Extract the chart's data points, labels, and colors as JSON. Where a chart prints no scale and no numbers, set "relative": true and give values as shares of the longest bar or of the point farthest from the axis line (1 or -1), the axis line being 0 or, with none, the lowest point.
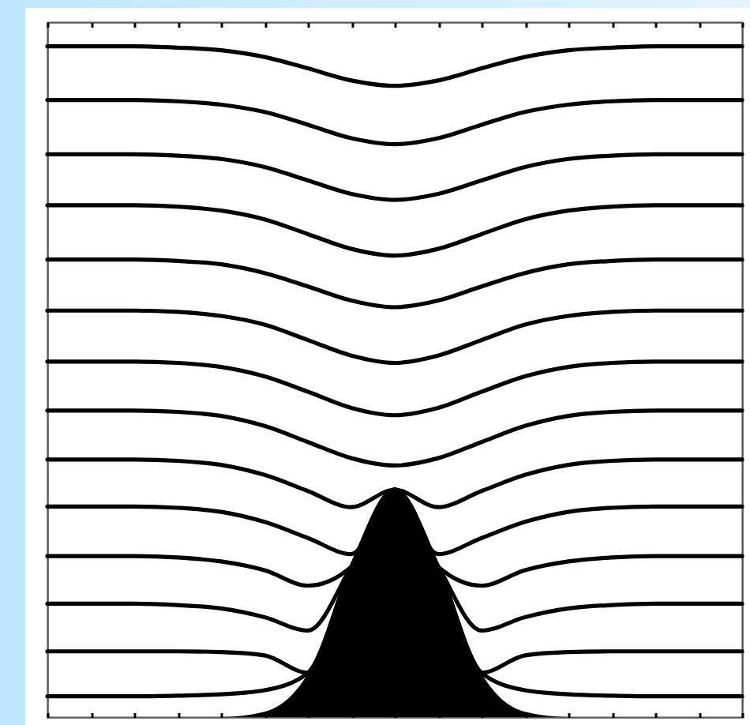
{
  "chart_data": {
    "type": "line",
    "relative": true,
    "categories": [
      null,
      null,
      null,
      null,
      null,
      null,
      null,
      null,
      null,
      null,
      null,
      null,
      null,
      null,
      null,
      null,
      null
    ],
    "series": [
      {
        "type": "area",
        "color": "#000000",
        "values": [
          0,
          0,
          0,
          0,
          0,
          0.008,
          0.065,
          0.224,
          0.339,
          0.224,
          0.065,
          0.008,
          0,
          0,
          0,
          0,
          0
        ]
      },
      {
        "color": "#000000",
        "values": [
          1,
          1,
          1,
          0.998,
          0.994,
          0.984,
          0.967,
          0.949,
          0.941,
          0.949,
          0.967,
          0.984,
          0.994,
          0.998,
          1,
          1,
          1
        ]
      },
      {
        "color": "#000000",
        "values": [
          0.92,
          0.92,
          0.92,
          0.918,
          0.913,
          0.902,
          0.883,
          0.863,
          0.854,
          0.863,
          0.883,
          0.902,
          0.913,
          0.918,
          0.92,
          0.92,
          0.92
        ]
      },
      {
        "color": "#000000",
        "values": [
          0.839,
          0.839,
          0.839,
          0.837,
          0.832,
          0.82,
          0.8,
          0.78,
          0.771,
          0.78,
          0.8,
          0.82,
          0.832,
          0.837,
          0.839,
          0.839,
          0.839
        ]
      },
      {
        "color": "#000000",
        "values": [
          0.763,
          0.763,
          0.763,
          0.761,
          0.755,
          0.742,
          0.72,
          0.698,
          0.688,
          0.698,
          0.72,
          0.742,
          0.755,
          0.761,
          0.763,
          0.763,
          0.763
        ]
      },
      {
        "color": "#000000",
        "values": [
          0.682,
          0.682,
          0.682,
          0.68,
          0.675,
          0.662,
          0.642,
          0.621,
          0.611,
          0.621,
          0.642,
          0.662,
          0.675,
          0.68,
          0.682,
          0.682,
          0.682
        ]
      },
      {
        "color": "#000000",
        "values": [
          0.606,
          0.606,
          0.606,
          0.604,
          0.598,
          0.585,
          0.562,
          0.539,
          0.528,
          0.539,
          0.562,
          0.585,
          0.598,
          0.604,
          0.606,
          0.606,
          0.606
        ]
      },
      {
        "color": "#000000",
        "values": [
          0.53,
          0.53,
          0.53,
          0.528,
          0.522,
          0.508,
          0.485,
          0.461,
          0.45,
          0.461,
          0.485,
          0.508,
          0.522,
          0.528,
          0.53,
          0.53,
          0.53
        ]
      },
      {
        "color": "#000000",
        "values": [
          0.457,
          0.457,
          0.457,
          0.455,
          0.449,
          0.434,
          0.41,
          0.386,
          0.375,
          0.386,
          0.41,
          0.434,
          0.449,
          0.455,
          0.457,
          0.457,
          0.457
        ]
      },
      {
        "color": "#000000",
        "values": [
          0.384,
          0.384,
          0.384,
          0.382,
          0.376,
          0.361,
          0.337,
          0.313,
          0.339,
          0.313,
          0.337,
          0.361,
          0.376,
          0.382,
          0.384,
          0.384,
          0.384
        ]
      },
      {
        "color": "#000000",
        "values": [
          0.314,
          0.314,
          0.314,
          0.312,
          0.306,
          0.291,
          0.267,
          0.243,
          0.339,
          0.243,
          0.267,
          0.291,
          0.306,
          0.312,
          0.314,
          0.314,
          0.314
        ]
      },
      {
        "color": "#000000",
        "values": [
          0.24,
          0.24,
          0.24,
          0.238,
          0.232,
          0.219,
          0.196,
          0.224,
          0.339,
          0.224,
          0.196,
          0.219,
          0.232,
          0.238,
          0.24,
          0.24,
          0.24
        ]
      },
      {
        "color": "#000000",
        "values": [
          0.169,
          0.169,
          0.169,
          0.167,
          0.162,
          0.149,
          0.129,
          0.224,
          0.339,
          0.224,
          0.129,
          0.149,
          0.162,
          0.167,
          0.169,
          0.169,
          0.169
        ]
      },
      {
        "color": "#000000",
        "values": [
          0.098,
          0.098,
          0.098,
          0.098,
          0.097,
          0.092,
          0.066,
          0.224,
          0.339,
          0.224,
          0.066,
          0.092,
          0.097,
          0.098,
          0.098,
          0.098,
          0.098
        ]
      },
      {
        "color": "#000000",
        "values": [
          0.031,
          0.031,
          0.031,
          0.032,
          0.034,
          0.04,
          0.066,
          0.224,
          0.339,
          0.224,
          0.066,
          0.04,
          0.034,
          0.032,
          0.031,
          0.031,
          0.031
        ]
      }
    ]
  }
}
